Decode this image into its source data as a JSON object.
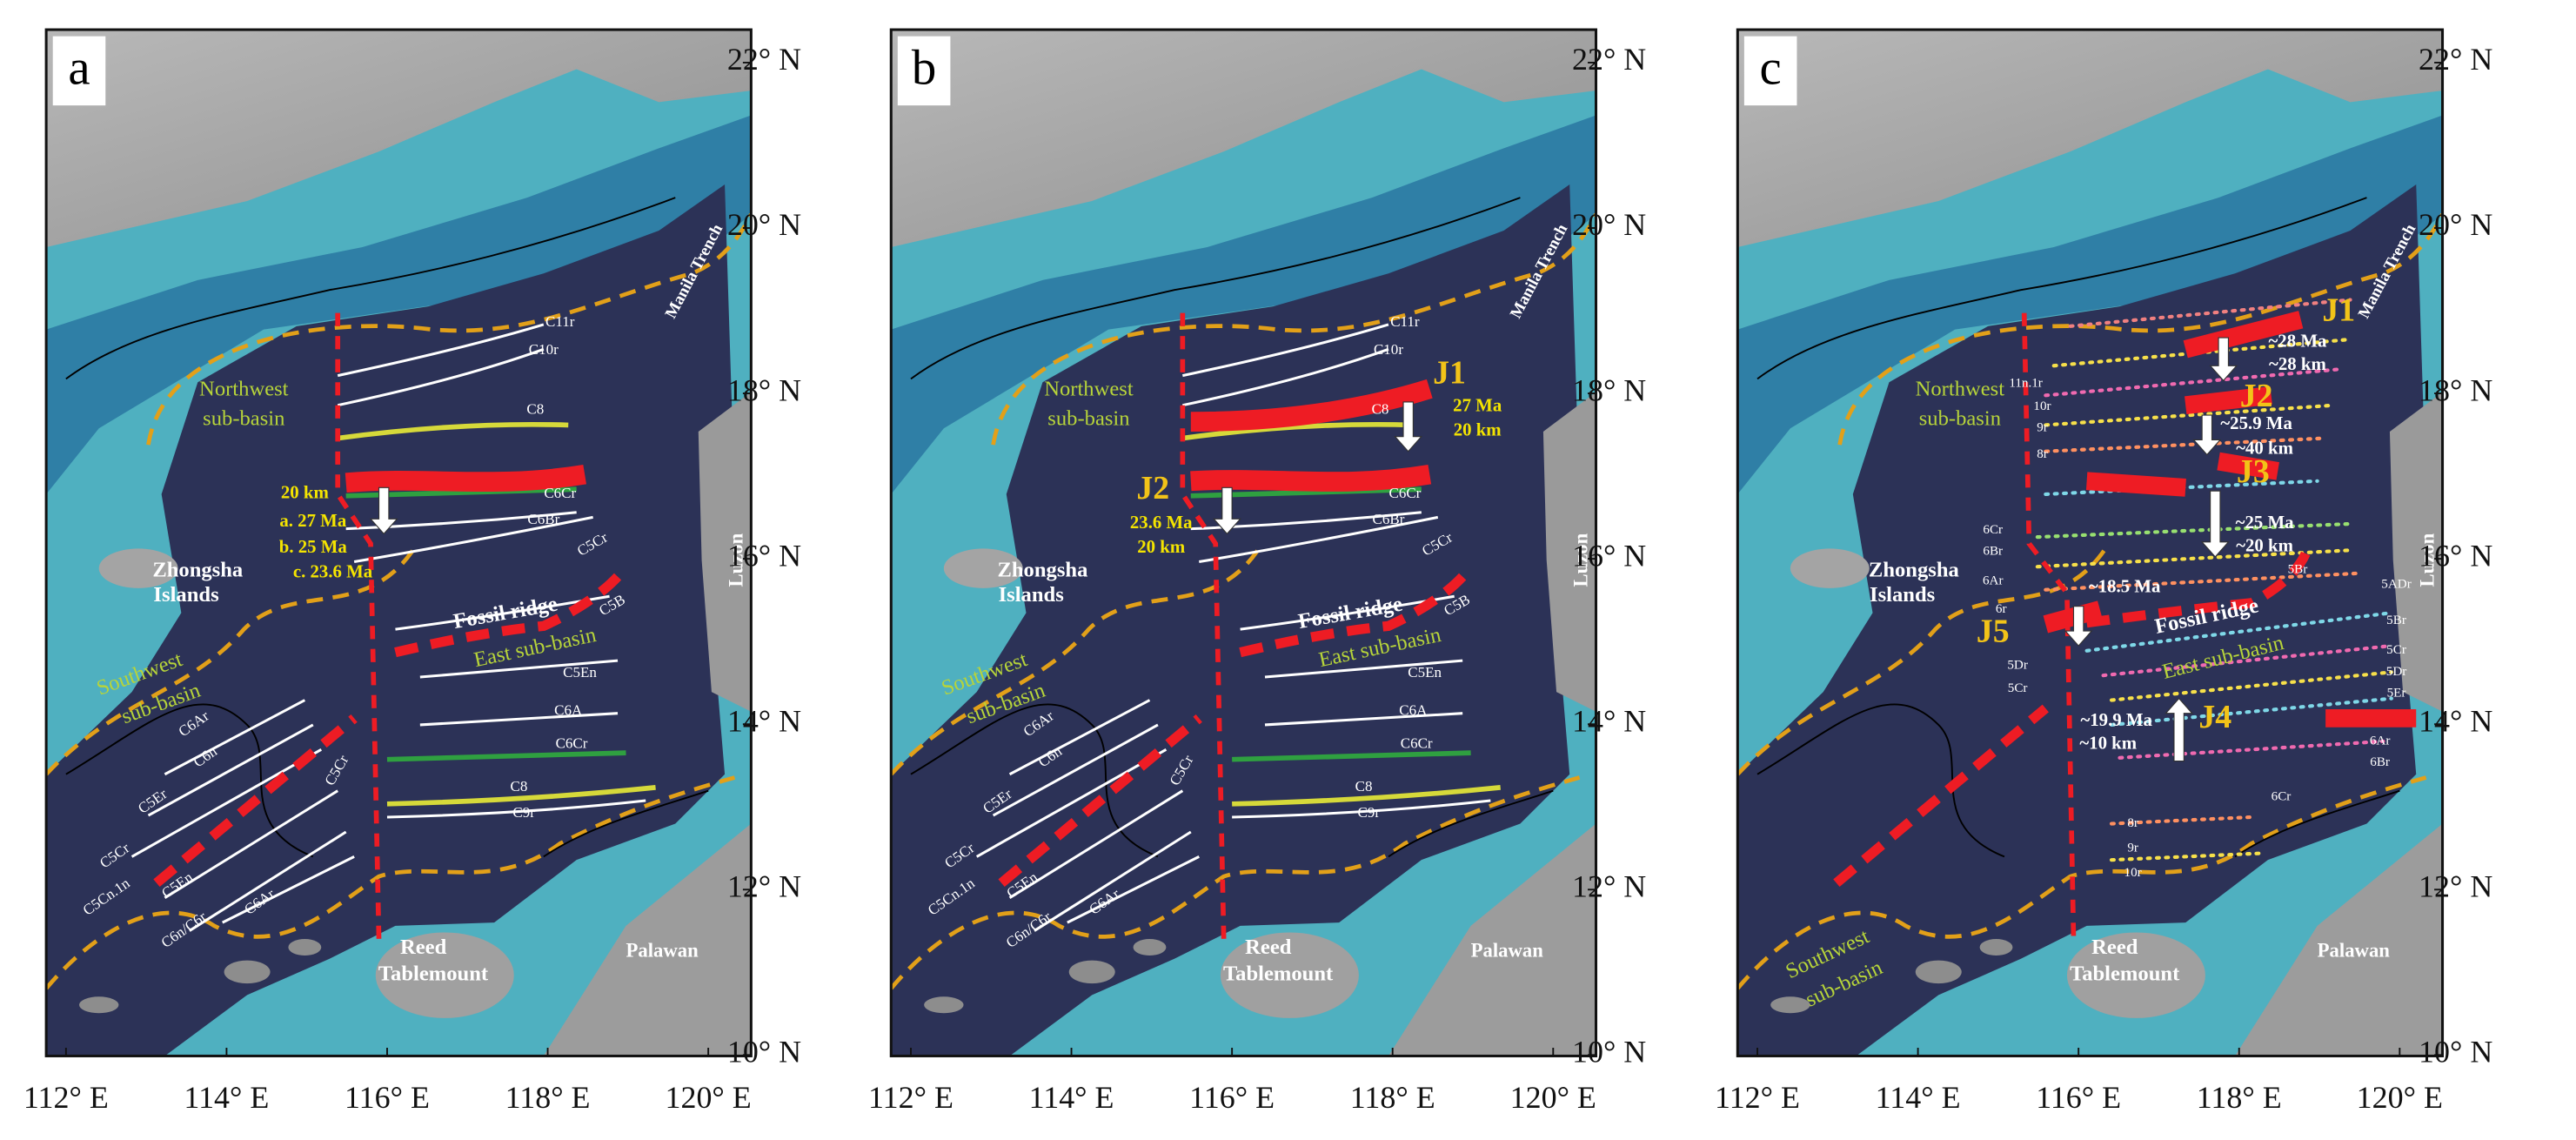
{
  "panels": [
    {
      "label": "a",
      "annotations": [
        "Northwest",
        "sub-basin",
        "Zhongsha",
        "Islands",
        "Southwest",
        "sub-basin",
        "Fossil ridge",
        "East sub-basin",
        "Manila Trench",
        "Luzon",
        "Reed",
        "Tablemount",
        "Palawan",
        "20 km",
        "a. 27 Ma",
        "b. 25 Ma",
        "c. 23.6 Ma",
        "C11r",
        "C10r",
        "C8",
        "C6Cr",
        "C6Br",
        "C5Cr",
        "C5B",
        "C5En",
        "C6A",
        "C6Cr",
        "C8",
        "C9r",
        "C6Ar",
        "C6n",
        "C5Er",
        "C5Cr",
        "C5Cn.1n",
        "C5En",
        "C6n/C6r",
        "C6Ar",
        "C5Cr"
      ]
    },
    {
      "label": "b",
      "annotations": [
        "Northwest",
        "sub-basin",
        "Zhongsha",
        "Islands",
        "Southwest",
        "sub-basin",
        "Fossil ridge",
        "East sub-basin",
        "Manila Trench",
        "Luzon",
        "Reed",
        "Tablemount",
        "Palawan",
        "J1",
        "27 Ma",
        "20 km",
        "J2",
        "23.6 Ma",
        "20 km",
        "C11r",
        "C10r",
        "C8",
        "C6Cr",
        "C6Br",
        "C5Cr",
        "C5B",
        "C5En",
        "C6A",
        "C6Cr",
        "C8",
        "C9r",
        "C6Ar",
        "C6n",
        "C5Er",
        "C5Cr",
        "C5Cn.1n",
        "C5En",
        "C6n/C6r",
        "C6Ar",
        "C5Cr"
      ]
    },
    {
      "label": "c",
      "annotations": [
        "Northwest",
        "sub-basin",
        "Zhongsha",
        "Islands",
        "Southwest",
        "sub-basin",
        "Fossil ridge",
        "East sub-basin",
        "Manila Trench",
        "Luzon",
        "Reed",
        "Tablemount",
        "Palawan",
        "J1",
        "~28 Ma",
        "~28 km",
        "J2",
        "~25.9 Ma",
        "~40 km",
        "J3",
        "~25 Ma",
        "~20 km",
        "~18.5 Ma",
        "J5",
        "J4",
        "~19.9 Ma",
        "~10 km",
        "11n.1r",
        "10r",
        "9r",
        "8r",
        "6Cr",
        "6Br",
        "6Ar",
        "6r",
        "5Dr",
        "5Cr",
        "5Br",
        "5ADr",
        "5Br",
        "5Cr",
        "5Dr",
        "5Er",
        "6Ar",
        "6Br",
        "6Cr",
        "8r",
        "9r",
        "10r"
      ]
    }
  ],
  "latitude_labels": [
    "22° N",
    "20° N",
    "18° N",
    "16° N",
    "14° N",
    "12° N",
    "10° N"
  ],
  "longitude_labels": [
    "112° E",
    "114° E",
    "116° E",
    "118° E",
    "120° E"
  ]
}
